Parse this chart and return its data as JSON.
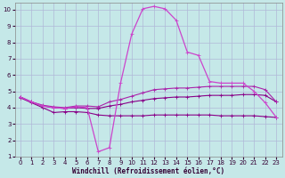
{
  "xlabel": "Windchill (Refroidissement éolien,°C)",
  "xlim": [
    -0.5,
    23.5
  ],
  "ylim": [
    1,
    10.4
  ],
  "xticks": [
    0,
    1,
    2,
    3,
    4,
    5,
    6,
    7,
    8,
    9,
    10,
    11,
    12,
    13,
    14,
    15,
    16,
    17,
    18,
    19,
    20,
    21,
    22,
    23
  ],
  "yticks": [
    1,
    2,
    3,
    4,
    5,
    6,
    7,
    8,
    9,
    10
  ],
  "background_color": "#c5e8e8",
  "grid_color": "#b0b8d8",
  "line_color_dark": "#880088",
  "line_color_mid": "#aa22aa",
  "line_color_bright": "#cc44cc",
  "series1_x": [
    0,
    1,
    2,
    3,
    4,
    5,
    6,
    7,
    8,
    9,
    10,
    11,
    12,
    13,
    14,
    15,
    16,
    17,
    18,
    19,
    20,
    21,
    22,
    23
  ],
  "series1_y": [
    4.6,
    4.3,
    4.0,
    3.7,
    3.75,
    3.75,
    3.7,
    3.55,
    3.5,
    3.5,
    3.5,
    3.5,
    3.55,
    3.55,
    3.55,
    3.55,
    3.55,
    3.55,
    3.5,
    3.5,
    3.5,
    3.5,
    3.45,
    3.4
  ],
  "series2_x": [
    0,
    1,
    2,
    3,
    4,
    5,
    6,
    7,
    8,
    9,
    10,
    11,
    12,
    13,
    14,
    15,
    16,
    17,
    18,
    19,
    20,
    21,
    22,
    23
  ],
  "series2_y": [
    4.65,
    4.35,
    4.1,
    4.0,
    3.95,
    4.0,
    3.95,
    3.95,
    4.1,
    4.2,
    4.35,
    4.45,
    4.55,
    4.6,
    4.65,
    4.65,
    4.7,
    4.75,
    4.75,
    4.75,
    4.8,
    4.8,
    4.75,
    4.35
  ],
  "series3_x": [
    0,
    1,
    2,
    3,
    4,
    5,
    6,
    7,
    8,
    9,
    10,
    11,
    12,
    13,
    14,
    15,
    16,
    17,
    18,
    19,
    20,
    21,
    22,
    23
  ],
  "series3_y": [
    4.65,
    4.35,
    4.15,
    4.05,
    4.0,
    4.1,
    4.1,
    4.05,
    4.35,
    4.5,
    4.7,
    4.9,
    5.1,
    5.15,
    5.2,
    5.2,
    5.25,
    5.3,
    5.3,
    5.3,
    5.3,
    5.3,
    5.1,
    4.35
  ],
  "series4_x": [
    0,
    1,
    2,
    3,
    4,
    5,
    6,
    7,
    8,
    9,
    10,
    11,
    12,
    13,
    14,
    15,
    16,
    17,
    18,
    19,
    20,
    21,
    22,
    23
  ],
  "series4_y": [
    4.65,
    4.35,
    4.1,
    4.0,
    3.95,
    4.05,
    4.0,
    1.3,
    1.55,
    5.5,
    8.5,
    10.05,
    10.2,
    10.05,
    9.35,
    7.4,
    7.2,
    5.6,
    5.5,
    5.5,
    5.5,
    5.0,
    4.3,
    3.4
  ]
}
